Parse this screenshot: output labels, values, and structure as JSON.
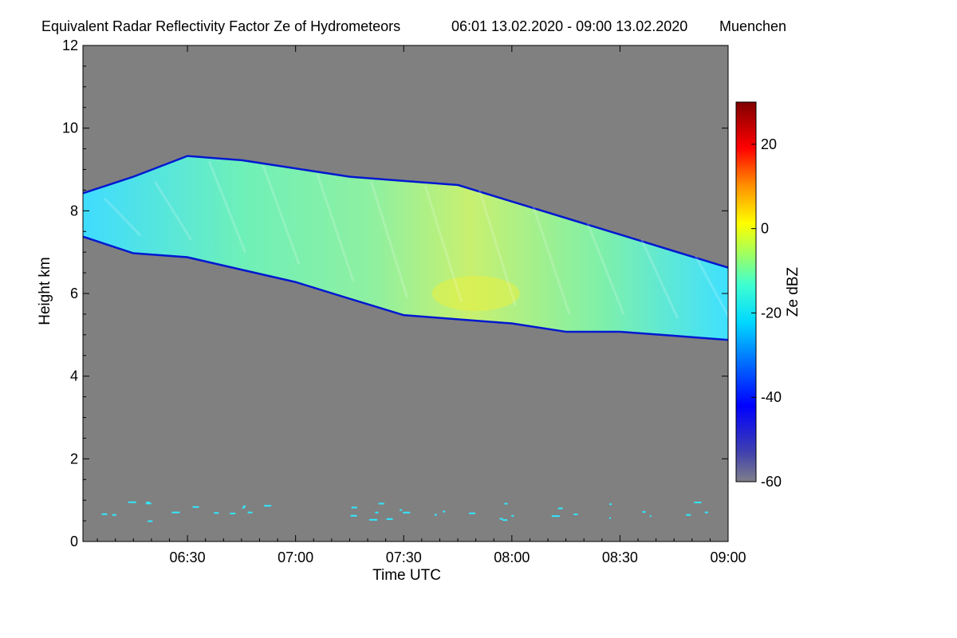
{
  "chart_data": {
    "type": "heatmap",
    "title": "Equivalent Radar Reflectivity Factor Ze of Hydrometeors",
    "period": "06:01 13.02.2020 - 09:00 13.02.2020",
    "location": "Muenchen",
    "xlabel": "Time UTC",
    "ylabel": "Height km",
    "xlim_minutes": [
      361,
      540
    ],
    "ylim": [
      0,
      12
    ],
    "xticks": [
      {
        "value": 390,
        "label": "06:30"
      },
      {
        "value": 420,
        "label": "07:00"
      },
      {
        "value": 450,
        "label": "07:30"
      },
      {
        "value": 480,
        "label": "08:00"
      },
      {
        "value": 510,
        "label": "08:30"
      },
      {
        "value": 540,
        "label": "09:00"
      }
    ],
    "yticks": [
      0,
      2,
      4,
      6,
      8,
      10,
      12
    ],
    "colorbar": {
      "label": "Ze dBZ",
      "range": [
        -60,
        30
      ],
      "ticks": [
        -60,
        -40,
        -20,
        0,
        20
      ]
    },
    "background_color": "#808080",
    "cloud_layer": {
      "times": [
        "06:01",
        "06:15",
        "06:30",
        "06:45",
        "07:00",
        "07:15",
        "07:30",
        "07:45",
        "08:00",
        "08:15",
        "08:30",
        "08:45",
        "09:00"
      ],
      "base_km": [
        7.4,
        7.0,
        6.9,
        6.6,
        6.3,
        5.9,
        5.5,
        5.4,
        5.3,
        5.1,
        5.1,
        5.0,
        4.9
      ],
      "top_km": [
        8.4,
        8.8,
        9.3,
        9.2,
        9.0,
        8.8,
        8.7,
        8.6,
        8.2,
        7.8,
        7.4,
        7.0,
        6.6
      ],
      "max_ze_dbz": -5,
      "max_ze_time": "07:50",
      "max_ze_height_km": 5.8
    },
    "low_level_speckles_km": [
      0.5,
      1.0
    ]
  }
}
